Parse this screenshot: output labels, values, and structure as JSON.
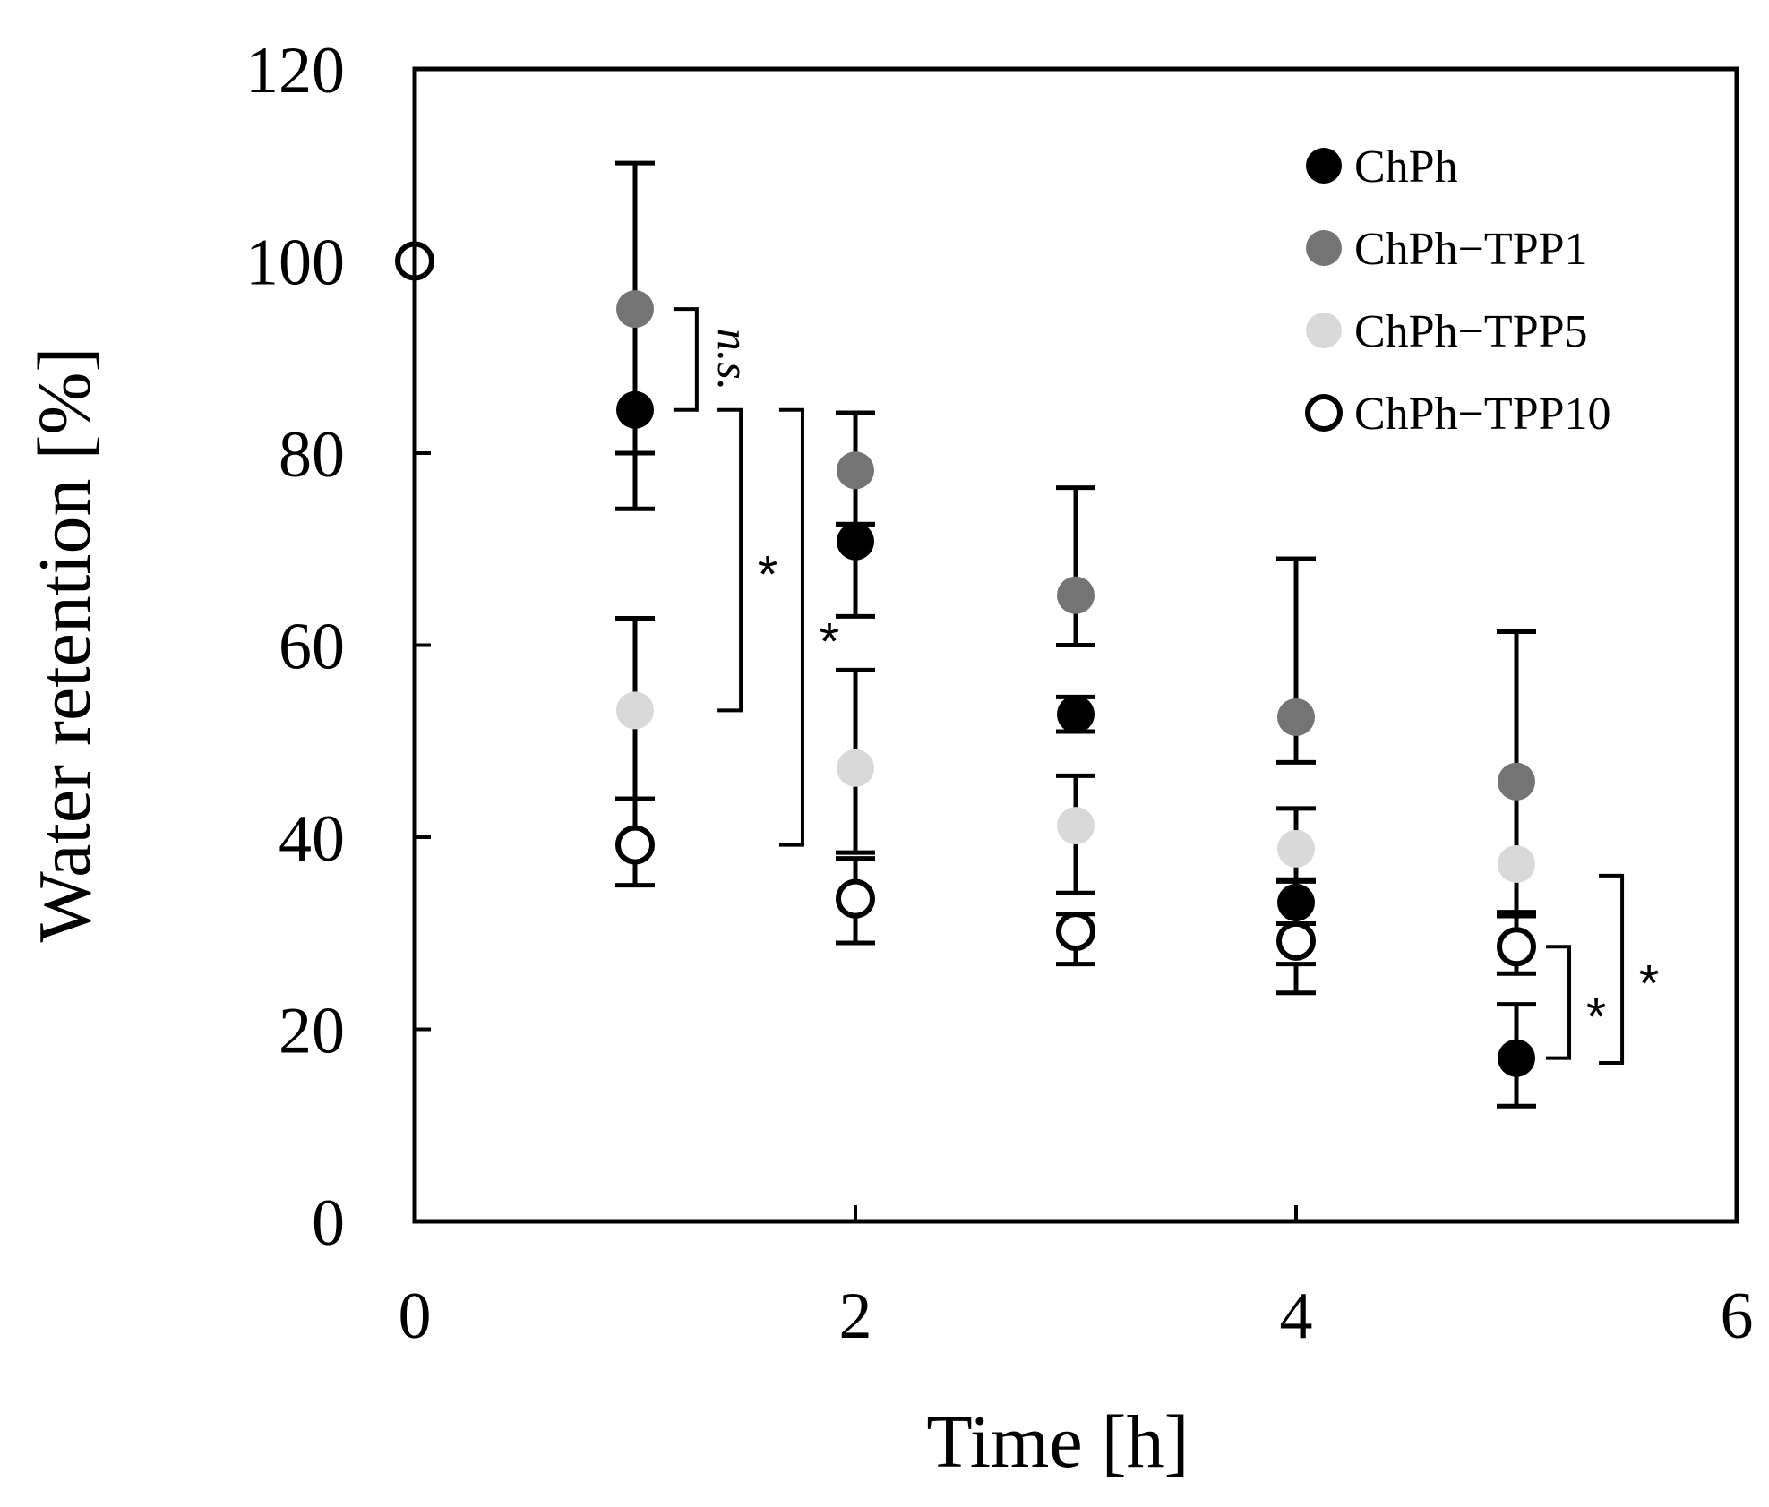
{
  "chart_data": {
    "type": "scatter",
    "title": "",
    "xlabel": "Time [h]",
    "ylabel": "Water retention [%]",
    "xlim": [
      0,
      6
    ],
    "ylim": [
      0,
      120
    ],
    "xticks": [
      "0",
      "2",
      "4",
      "6"
    ],
    "yticks": [
      "0",
      "20",
      "40",
      "60",
      "80",
      "100",
      "120"
    ],
    "grid": false,
    "legend_position": "top-right",
    "series": [
      {
        "name": "ChPh",
        "marker": "filled-circle",
        "color": "#000000",
        "x": [
          1,
          2,
          3,
          4,
          5
        ],
        "y": [
          84.5,
          70.8,
          52.8,
          33.2,
          17.0
        ],
        "err_low": [
          74.2,
          63.0,
          51.0,
          31.0,
          12.0
        ],
        "err_high": [
          80.0,
          72.6,
          54.6,
          35.4,
          22.6
        ]
      },
      {
        "name": "ChPh−TPP1",
        "marker": "filled-circle",
        "color": "#747474",
        "x": [
          1,
          2,
          3,
          4,
          5
        ],
        "y": [
          95.0,
          78.2,
          65.2,
          52.5,
          45.8
        ],
        "err_low": [
          80.0,
          72.6,
          60.0,
          47.8,
          32.2
        ],
        "err_high": [
          110.2,
          84.2,
          76.4,
          69.0,
          61.4
        ]
      },
      {
        "name": "ChPh−TPP5",
        "marker": "filled-circle",
        "color": "#d9d9d9",
        "x": [
          1,
          2,
          3,
          4,
          5
        ],
        "y": [
          53.2,
          47.2,
          41.2,
          38.8,
          37.2
        ],
        "err_low": [
          44.0,
          38.4,
          34.2,
          35.6,
          32.0
        ],
        "err_high": [
          62.8,
          57.4,
          46.4,
          43.0,
          31.8
        ]
      },
      {
        "name": "ChPh−TPP10",
        "marker": "open-circle",
        "color": "#000000",
        "x": [
          0,
          1,
          2,
          3,
          4,
          5
        ],
        "y": [
          100.0,
          39.2,
          33.6,
          30.2,
          29.2,
          28.6
        ],
        "err_low": [
          null,
          35.0,
          29.0,
          26.8,
          23.8,
          25.8
        ],
        "err_high": [
          null,
          44.0,
          37.8,
          32.0,
          26.8,
          32.0
        ]
      }
    ],
    "annotations": [
      {
        "text": "n.s.",
        "style": "italic",
        "rotated": true,
        "x": 1,
        "y_from": 95.0,
        "y_to": 84.5,
        "offset": 0.28
      },
      {
        "text": "*",
        "x": 1,
        "y_from": 84.5,
        "y_to": 53.2,
        "offset": 0.48
      },
      {
        "text": "*",
        "x": 1,
        "y_from": 84.5,
        "y_to": 39.2,
        "offset": 0.76
      },
      {
        "text": "*",
        "x": 5,
        "y_from": 28.6,
        "y_to": 17.0,
        "offset": 0.24
      },
      {
        "text": "*",
        "x": 5,
        "y_from": 36.0,
        "y_to": 16.5,
        "offset": 0.48
      }
    ]
  }
}
